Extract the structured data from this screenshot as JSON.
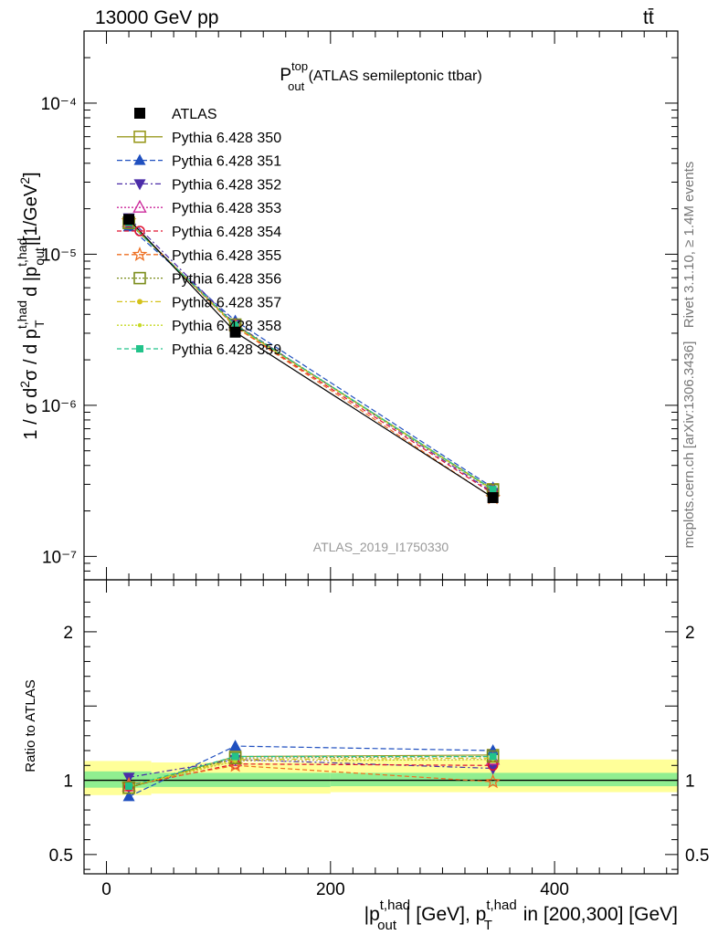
{
  "header": {
    "energy": "13000 GeV pp",
    "process": "tt̄"
  },
  "side_labels": {
    "rivet": "Rivet 3.1.10, ≥ 1.4M events",
    "mcplots": "mcplots.cern.ch [arXiv:1306.3436]"
  },
  "colors": {
    "band_inner": "#90ee90",
    "band_outer": "#ffff99",
    "atlas": "#000000"
  },
  "chart_data": [
    {
      "type": "line",
      "title_main": "P",
      "title_sup": "top",
      "title_sub": "out",
      "title_rest": " (ATLAS semileptonic ttbar)",
      "ylabel": "1 / σ d²σ / d p_T^{t,had} d |p_out^{t,had}| [1/GeV²]",
      "yscale": "log",
      "ylim": [
        7e-08,
        0.0003
      ],
      "xlim": [
        -20,
        510
      ],
      "x": [
        20,
        115,
        345
      ],
      "watermark": "ATLAS_2019_I1750330",
      "ytick_labels": [
        "10⁻⁷",
        "10⁻⁶",
        "10⁻⁵",
        "10⁻⁴"
      ],
      "ytick_values": [
        1e-07,
        1e-06,
        1e-05,
        0.0001
      ],
      "series": [
        {
          "name": "ATLAS",
          "color": "#000000",
          "dash": "",
          "marker": "fsquare",
          "values": [
            1.7e-05,
            3.05e-06,
            2.45e-07
          ]
        },
        {
          "name": "Pythia 6.428 350",
          "color": "#9a9a20",
          "dash": "",
          "marker": "osquare",
          "values": [
            1.62e-05,
            3.38e-06,
            2.78e-07
          ]
        },
        {
          "name": "Pythia 6.428 351",
          "color": "#1f4fbf",
          "dash": "6,3",
          "marker": "ftri",
          "values": [
            1.52e-05,
            3.62e-06,
            2.85e-07
          ]
        },
        {
          "name": "Pythia 6.428 352",
          "color": "#4b2ca8",
          "dash": "6,3,2,3",
          "marker": "ftridown",
          "values": [
            1.74e-05,
            3.45e-06,
            2.65e-07
          ]
        },
        {
          "name": "Pythia 6.428 353",
          "color": "#cc2b9c",
          "dash": "2,2",
          "marker": "otri",
          "values": [
            1.64e-05,
            3.4e-06,
            2.72e-07
          ]
        },
        {
          "name": "Pythia 6.428 354",
          "color": "#e0102f",
          "dash": "5,3",
          "marker": "ocircle",
          "values": [
            1.63e-05,
            3.32e-06,
            2.6e-07
          ]
        },
        {
          "name": "Pythia 6.428 355",
          "color": "#ee6f21",
          "dash": "5,3",
          "marker": "ostar",
          "values": [
            1.66e-05,
            3.3e-06,
            2.44e-07
          ]
        },
        {
          "name": "Pythia 6.428 356",
          "color": "#7a8c1a",
          "dash": "2,2",
          "marker": "osquare",
          "values": [
            1.61e-05,
            3.42e-06,
            2.75e-07
          ]
        },
        {
          "name": "Pythia 6.428 357",
          "color": "#d4c21a",
          "dash": "6,3,2,3",
          "marker": "fcirc",
          "values": [
            1.63e-05,
            3.36e-06,
            2.76e-07
          ]
        },
        {
          "name": "Pythia 6.428 358",
          "color": "#c6d924",
          "dash": "2,2",
          "marker": "fdot",
          "values": [
            1.64e-05,
            3.35e-06,
            2.73e-07
          ]
        },
        {
          "name": "Pythia 6.428 359",
          "color": "#22c38a",
          "dash": "5,3",
          "marker": "fsquaresm",
          "values": [
            1.62e-05,
            3.4e-06,
            2.77e-07
          ]
        }
      ]
    },
    {
      "type": "line",
      "ylabel": "Ratio to ATLAS",
      "ylim": [
        0.37,
        2.35
      ],
      "xlim": [
        -20,
        510
      ],
      "xlabel": "|p_out^{t,had}| [GeV], p_T^{t,had} in [200,300] [GeV]",
      "xtick_labels": [
        "0",
        "200",
        "400"
      ],
      "xtick_values": [
        0,
        200,
        400
      ],
      "ytick_labels": [
        "0.5",
        "1",
        "2"
      ],
      "ytick_values": [
        0.5,
        1,
        2
      ],
      "band_inner": [
        [
          -20,
          40,
          0.95,
          1.06
        ],
        [
          40,
          200,
          0.955,
          1.05
        ],
        [
          200,
          510,
          0.96,
          1.05
        ]
      ],
      "band_outer": [
        [
          -20,
          40,
          0.9,
          1.13
        ],
        [
          40,
          200,
          0.91,
          1.12
        ],
        [
          200,
          510,
          0.92,
          1.14
        ]
      ],
      "x": [
        20,
        115,
        345
      ],
      "series": [
        {
          "name": "Pythia 6.428 350",
          "values": [
            0.95,
            1.16,
            1.17
          ]
        },
        {
          "name": "Pythia 6.428 351",
          "values": [
            0.89,
            1.23,
            1.2
          ]
        },
        {
          "name": "Pythia 6.428 352",
          "values": [
            1.02,
            1.14,
            1.08
          ]
        },
        {
          "name": "Pythia 6.428 353",
          "values": [
            0.96,
            1.13,
            1.14
          ]
        },
        {
          "name": "Pythia 6.428 354",
          "values": [
            0.96,
            1.11,
            1.1
          ]
        },
        {
          "name": "Pythia 6.428 355",
          "values": [
            0.97,
            1.1,
            0.99
          ]
        },
        {
          "name": "Pythia 6.428 356",
          "values": [
            0.95,
            1.15,
            1.16
          ]
        },
        {
          "name": "Pythia 6.428 357",
          "values": [
            0.96,
            1.14,
            1.15
          ]
        },
        {
          "name": "Pythia 6.428 358",
          "values": [
            0.96,
            1.13,
            1.14
          ]
        },
        {
          "name": "Pythia 6.428 359",
          "values": [
            0.96,
            1.16,
            1.16
          ]
        }
      ]
    }
  ]
}
